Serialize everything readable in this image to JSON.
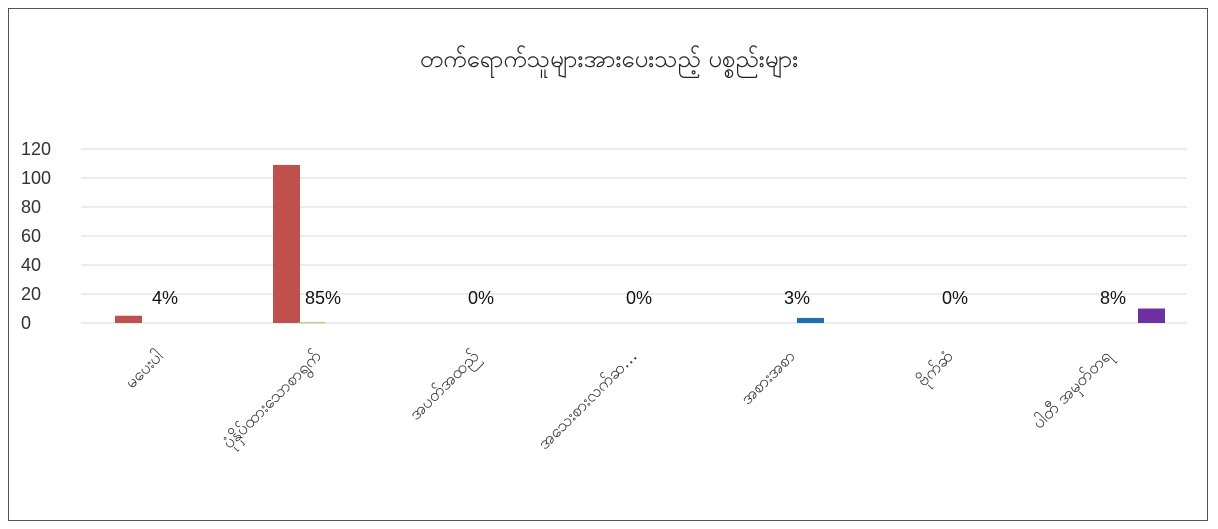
{
  "chart_data": {
    "type": "bar",
    "title": "တက်ရောက်သူများအားပေးသည့် ပစ္စည်းများ",
    "xlabel": "",
    "ylabel": "",
    "ylim": [
      0,
      120
    ],
    "yticks": [
      "0",
      "20",
      "40",
      "60",
      "80",
      "100",
      "120"
    ],
    "grid": true,
    "legend": "none",
    "categories": [
      "မပေးပါ",
      "ပုံနှိပ်ထားသောစာရွက်",
      "အပတ်အထည်",
      "အသေးစားလက်ဆ…",
      "အစားအစာ",
      "ဗိုက်ဆံ",
      "ပါတီ အမှတ်တရ"
    ],
    "series": [
      {
        "values": [
          5,
          109,
          0,
          0,
          0,
          0,
          0
        ],
        "color": "#c0504d"
      },
      {
        "values": [
          0,
          0.5,
          0,
          0,
          0,
          0,
          0
        ],
        "color": "#9bbb59"
      },
      {
        "values": [
          0,
          0,
          0,
          0,
          3.5,
          0,
          0
        ],
        "color": "#1f6fb2"
      },
      {
        "values": [
          0,
          0,
          0,
          0,
          0,
          0,
          10
        ],
        "color": "#7030a0"
      }
    ],
    "data_labels": [
      "4%",
      "85%",
      "0%",
      "0%",
      "3%",
      "0%",
      "8%"
    ]
  }
}
